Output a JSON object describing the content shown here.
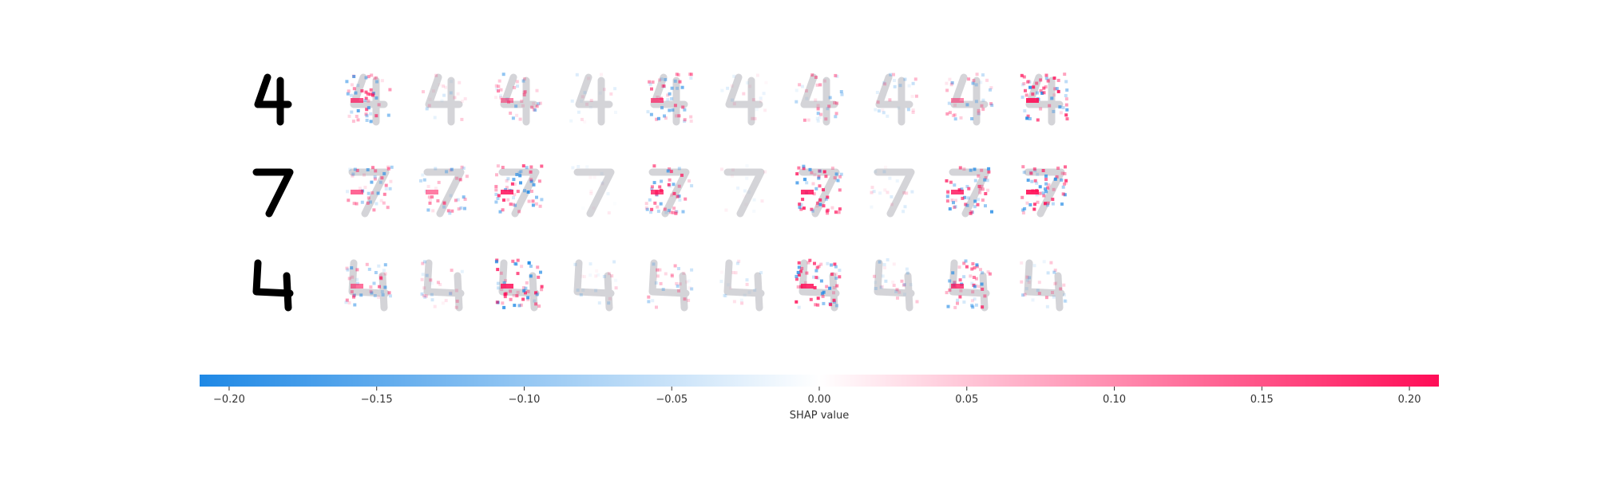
{
  "chart_data": {
    "type": "heatmap",
    "title": "",
    "description_rows": [
      "4",
      "7",
      "4"
    ],
    "row_labels_digits": [
      "4",
      "7",
      "4"
    ],
    "num_explanation_columns": 10,
    "row_intensities": [
      [
        0.8,
        0.25,
        0.55,
        0.2,
        0.75,
        0.2,
        0.5,
        0.35,
        0.55,
        1.0
      ],
      [
        0.7,
        0.6,
        0.95,
        0.1,
        0.85,
        0.1,
        0.95,
        0.2,
        0.9,
        1.0
      ],
      [
        0.65,
        0.35,
        0.95,
        0.25,
        0.4,
        0.2,
        0.95,
        0.35,
        0.85,
        0.45
      ]
    ],
    "colorbar": {
      "label": "SHAP value",
      "range": [
        -0.21,
        0.21
      ],
      "ticks": [
        -0.2,
        -0.15,
        -0.1,
        -0.05,
        0.0,
        0.05,
        0.1,
        0.15,
        0.2
      ],
      "tick_labels": [
        "−0.20",
        "−0.15",
        "−0.10",
        "−0.05",
        "0.00",
        "0.05",
        "0.10",
        "0.15",
        "0.20"
      ],
      "negative_color": "#1e88e5",
      "positive_color": "#ff0d57"
    }
  }
}
